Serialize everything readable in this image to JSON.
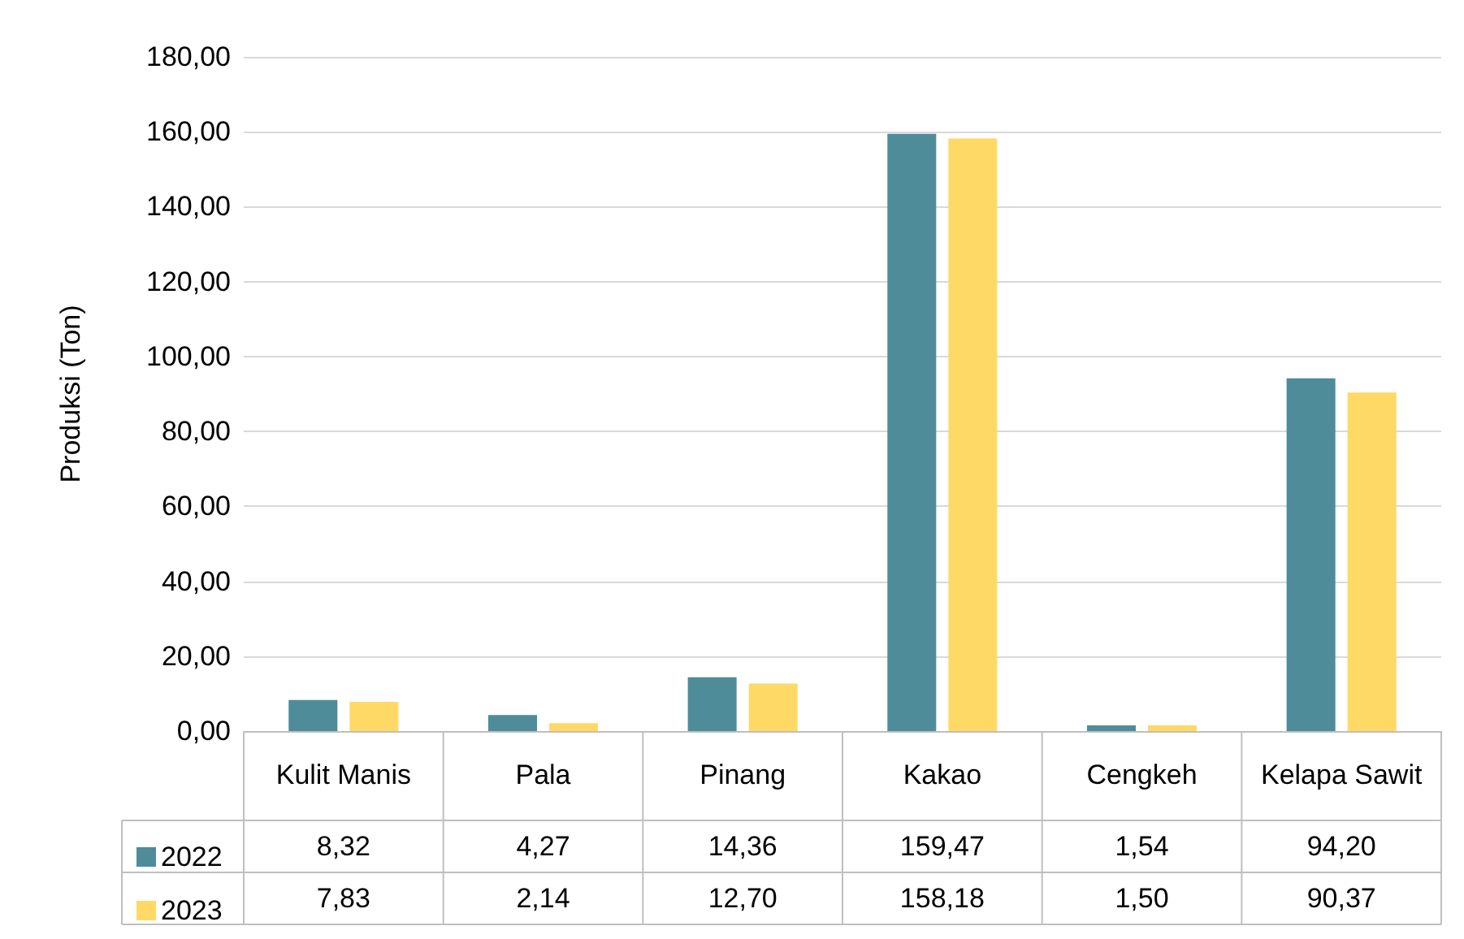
{
  "chart_data": {
    "type": "bar",
    "ylabel": "Produksi (Ton)",
    "categories": [
      "Kulit Manis",
      "Pala",
      "Pinang",
      "Kakao",
      "Cengkeh",
      "Kelapa Sawit"
    ],
    "series": [
      {
        "name": "2022",
        "color": "#4e8c9a",
        "values": [
          8.32,
          4.27,
          14.36,
          159.47,
          1.54,
          94.2
        ],
        "value_labels": [
          "8,32",
          "4,27",
          "14,36",
          "159,47",
          "1,54",
          "94,20"
        ]
      },
      {
        "name": "2023",
        "color": "#ffd966",
        "values": [
          7.83,
          2.14,
          12.7,
          158.18,
          1.5,
          90.37
        ],
        "value_labels": [
          "7,83",
          "2,14",
          "12,70",
          "158,18",
          "1,50",
          "90,37"
        ]
      }
    ],
    "ylim": [
      0,
      180
    ],
    "yticks": [
      {
        "value": 0,
        "label": "0,00"
      },
      {
        "value": 20,
        "label": "20,00"
      },
      {
        "value": 40,
        "label": "40,00"
      },
      {
        "value": 60,
        "label": "60,00"
      },
      {
        "value": 80,
        "label": "80,00"
      },
      {
        "value": 100,
        "label": "100,00"
      },
      {
        "value": 120,
        "label": "120,00"
      },
      {
        "value": 140,
        "label": "140,00"
      },
      {
        "value": 160,
        "label": "160,00"
      },
      {
        "value": 180,
        "label": "180,00"
      }
    ],
    "grid": "y",
    "legend": "bottom left"
  }
}
